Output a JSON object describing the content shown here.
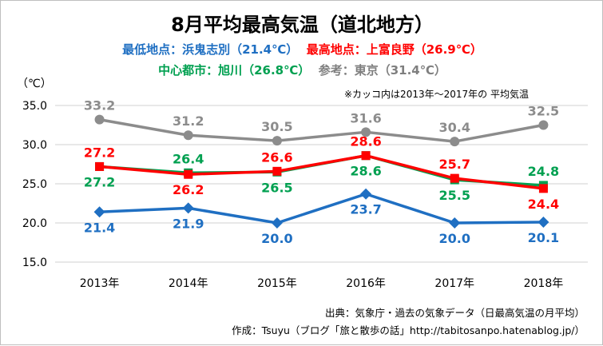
{
  "header": {
    "title": "8月平均最高気温（道北地方）",
    "line1": [
      {
        "text": "最低地点：浜鬼志別（21.4℃）",
        "color": "blue"
      },
      {
        "text": "最高地点：上富良野（26.9℃）",
        "color": "red"
      }
    ],
    "line2": [
      {
        "text": "中心都市：旭川（26.8℃）",
        "color": "green"
      },
      {
        "text": "参考：東京（31.4℃）",
        "color": "gray"
      }
    ]
  },
  "unit_label": "（℃）",
  "note": "※カッコ内は2013年～2017年の 平均気温",
  "source": {
    "line1": "出典：気象庁・過去の気象データ（日最高気温の月平均）",
    "line2": "作成：Tsuyu（ブログ「旅と散歩の話」http://tabitosanpo.hatenablog.jp/）"
  },
  "chart_data": {
    "type": "line",
    "categories": [
      "2013年",
      "2014年",
      "2015年",
      "2016年",
      "2017年",
      "2018年"
    ],
    "ylim": [
      15.0,
      35.0
    ],
    "yticks": [
      "15.0",
      "20.0",
      "25.0",
      "30.0",
      "35.0"
    ],
    "grid": true,
    "series": [
      {
        "key": "tokyo",
        "color": "#8c8c8c",
        "marker": "circle",
        "values": [
          33.2,
          31.2,
          30.5,
          31.6,
          30.4,
          32.5
        ],
        "label_pos": "above",
        "label_color": "#8c8c8c"
      },
      {
        "key": "asahikawa",
        "color": "#00a050",
        "marker": "square",
        "values": [
          27.2,
          26.4,
          26.5,
          28.6,
          25.5,
          24.8
        ],
        "label_pos": [
          "below",
          "above",
          "below",
          "below",
          "below",
          "above"
        ],
        "label_color": "#00a050"
      },
      {
        "key": "kamifurano",
        "color": "#ff0000",
        "marker": "square",
        "values": [
          27.2,
          26.2,
          26.6,
          28.6,
          25.7,
          24.4
        ],
        "label_pos": [
          "above",
          "below",
          "above",
          "above",
          "above",
          "below"
        ],
        "label_color": "#ff0000"
      },
      {
        "key": "hamaonishibetsu",
        "color": "#1f6fc2",
        "marker": "diamond",
        "values": [
          21.4,
          21.9,
          20.0,
          23.7,
          20.0,
          20.1
        ],
        "label_pos": "below",
        "label_color": "#1f6fc2"
      }
    ]
  }
}
